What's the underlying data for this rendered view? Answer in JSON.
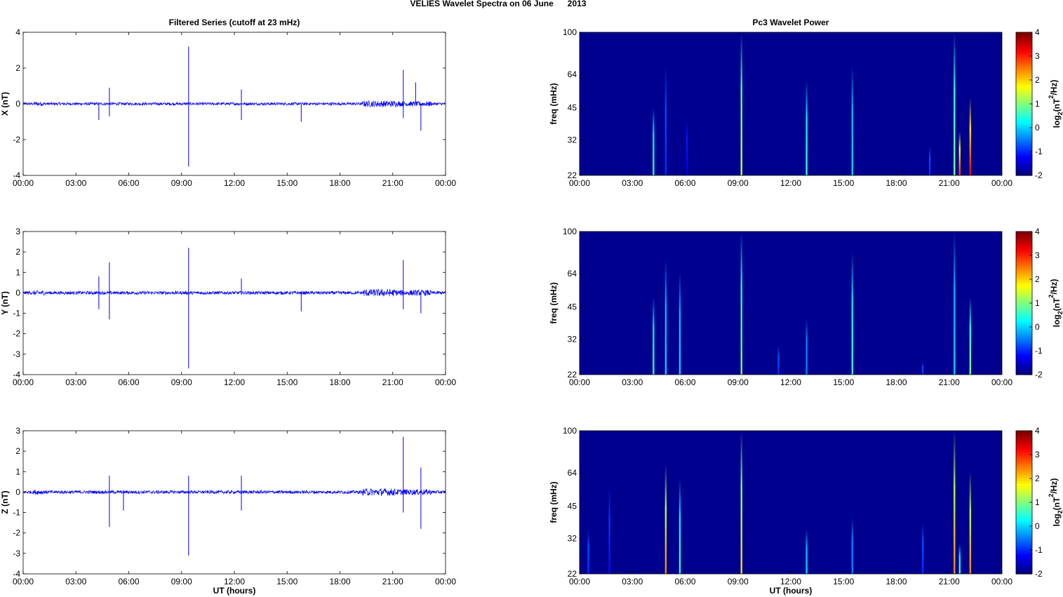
{
  "figure_title": "VELIES Wavelet Spectra on 06 June      2013",
  "left_title": "Filtered Series (cutoff at 23 mHz)",
  "right_title": "Pc3 Wavelet Power",
  "x_label": "UT (hours)",
  "freq_label": "freq (mHz)",
  "colorbar_label": "log2(nT2/Hz)",
  "colors": {
    "trace": "#0000ff",
    "spectrum_bg": "#00008f"
  },
  "chart_data": [
    {
      "type": "line",
      "title": "Filtered Series (cutoff at 23 mHz)",
      "ylabel": "X (nT)",
      "xlabel": "",
      "xlim": [
        "00:00",
        "00:00"
      ],
      "xticks": [
        "00:00",
        "03:00",
        "06:00",
        "09:00",
        "12:00",
        "15:00",
        "18:00",
        "21:00",
        "00:00"
      ],
      "ylim": [
        -4,
        4
      ],
      "yticks": [
        "4",
        "2",
        "0",
        "-2",
        "-4"
      ],
      "spikes": [
        {
          "x": 4.3,
          "y": -0.9
        },
        {
          "x": 4.9,
          "y": 0.9
        },
        {
          "x": 4.9,
          "y": -0.7
        },
        {
          "x": 9.4,
          "y": 3.2
        },
        {
          "x": 9.4,
          "y": -3.5
        },
        {
          "x": 12.4,
          "y": 0.8
        },
        {
          "x": 12.4,
          "y": -0.9
        },
        {
          "x": 15.8,
          "y": -1.0
        },
        {
          "x": 21.6,
          "y": 1.9
        },
        {
          "x": 21.6,
          "y": -0.8
        },
        {
          "x": 22.3,
          "y": 1.2
        },
        {
          "x": 22.6,
          "y": -1.5
        }
      ]
    },
    {
      "type": "line",
      "ylabel": "Y (nT)",
      "xlabel": "",
      "xlim": [
        "00:00",
        "00:00"
      ],
      "xticks": [
        "00:00",
        "03:00",
        "06:00",
        "09:00",
        "12:00",
        "15:00",
        "18:00",
        "21:00",
        "00:00"
      ],
      "ylim": [
        -4,
        3
      ],
      "yticks": [
        "3",
        "2",
        "1",
        "0",
        "-1",
        "-2",
        "-3",
        "-4"
      ],
      "spikes": [
        {
          "x": 4.3,
          "y": 0.8
        },
        {
          "x": 4.3,
          "y": -0.8
        },
        {
          "x": 4.9,
          "y": 1.5
        },
        {
          "x": 4.9,
          "y": -1.3
        },
        {
          "x": 9.4,
          "y": 2.2
        },
        {
          "x": 9.4,
          "y": -3.7
        },
        {
          "x": 12.4,
          "y": 0.7
        },
        {
          "x": 15.8,
          "y": -0.9
        },
        {
          "x": 21.6,
          "y": 1.6
        },
        {
          "x": 21.6,
          "y": -0.8
        },
        {
          "x": 22.6,
          "y": -1.0
        }
      ]
    },
    {
      "type": "line",
      "ylabel": "Z (nT)",
      "xlabel": "UT (hours)",
      "xlim": [
        "00:00",
        "00:00"
      ],
      "xticks": [
        "00:00",
        "03:00",
        "06:00",
        "09:00",
        "12:00",
        "15:00",
        "18:00",
        "21:00",
        "00:00"
      ],
      "ylim": [
        -4,
        3
      ],
      "yticks": [
        "3",
        "2",
        "1",
        "0",
        "-1",
        "-2",
        "-3",
        "-4"
      ],
      "spikes": [
        {
          "x": 4.9,
          "y": 0.8
        },
        {
          "x": 4.9,
          "y": -1.7
        },
        {
          "x": 5.7,
          "y": -0.9
        },
        {
          "x": 9.4,
          "y": 0.8
        },
        {
          "x": 9.4,
          "y": -3.1
        },
        {
          "x": 12.4,
          "y": 0.8
        },
        {
          "x": 12.4,
          "y": -0.9
        },
        {
          "x": 21.6,
          "y": 2.7
        },
        {
          "x": 21.6,
          "y": -1.0
        },
        {
          "x": 22.6,
          "y": 1.2
        },
        {
          "x": 22.6,
          "y": -1.8
        }
      ]
    },
    {
      "type": "heatmap",
      "title": "Pc3 Wavelet Power",
      "ylabel": "freq (mHz)",
      "xlabel": "",
      "xticks": [
        "00:00",
        "03:00",
        "06:00",
        "09:00",
        "12:00",
        "15:00",
        "18:00",
        "21:00",
        "00:00"
      ],
      "yticks": [
        "100",
        "64",
        "45",
        "32",
        "22"
      ],
      "colorbar": {
        "label": "log2(nT2/Hz)",
        "range": [
          -2,
          4
        ],
        "ticks": [
          "4",
          "3",
          "2",
          "1",
          "0",
          "-1",
          "-2"
        ]
      },
      "streaks": [
        {
          "x": 4.2,
          "top_freq": 45,
          "peak": 0.5
        },
        {
          "x": 4.9,
          "top_freq": 70,
          "peak": -1
        },
        {
          "x": 6.1,
          "top_freq": 40,
          "peak": -1.5
        },
        {
          "x": 9.2,
          "top_freq": 100,
          "peak": 1.5
        },
        {
          "x": 12.9,
          "top_freq": 60,
          "peak": 0.5
        },
        {
          "x": 15.5,
          "top_freq": 70,
          "peak": 0
        },
        {
          "x": 19.9,
          "top_freq": 30,
          "peak": -1
        },
        {
          "x": 21.3,
          "top_freq": 100,
          "peak": 1
        },
        {
          "x": 21.6,
          "top_freq": 35,
          "peak": 3
        },
        {
          "x": 22.2,
          "top_freq": 50,
          "peak": 3.5
        }
      ]
    },
    {
      "type": "heatmap",
      "ylabel": "freq (mHz)",
      "xlabel": "",
      "xticks": [
        "00:00",
        "03:00",
        "06:00",
        "09:00",
        "12:00",
        "15:00",
        "18:00",
        "21:00",
        "00:00"
      ],
      "yticks": [
        "100",
        "64",
        "45",
        "32",
        "22"
      ],
      "colorbar": {
        "label": "log2(nT2/Hz)",
        "range": [
          -2,
          4
        ],
        "ticks": [
          "4",
          "3",
          "2",
          "1",
          "0",
          "-1",
          "-2"
        ]
      },
      "streaks": [
        {
          "x": 4.2,
          "top_freq": 50,
          "peak": 0.5
        },
        {
          "x": 4.9,
          "top_freq": 75,
          "peak": 0
        },
        {
          "x": 5.7,
          "top_freq": 65,
          "peak": 0
        },
        {
          "x": 9.2,
          "top_freq": 100,
          "peak": 1
        },
        {
          "x": 11.3,
          "top_freq": 30,
          "peak": -1
        },
        {
          "x": 12.9,
          "top_freq": 40,
          "peak": -0.5
        },
        {
          "x": 15.5,
          "top_freq": 80,
          "peak": 0.5
        },
        {
          "x": 19.5,
          "top_freq": 25,
          "peak": -1
        },
        {
          "x": 21.3,
          "top_freq": 100,
          "peak": 0
        },
        {
          "x": 22.2,
          "top_freq": 50,
          "peak": 1
        }
      ]
    },
    {
      "type": "heatmap",
      "ylabel": "freq (mHz)",
      "xlabel": "UT (hours)",
      "xticks": [
        "00:00",
        "03:00",
        "06:00",
        "09:00",
        "12:00",
        "15:00",
        "18:00",
        "21:00",
        "00:00"
      ],
      "yticks": [
        "100",
        "64",
        "45",
        "32",
        "22"
      ],
      "colorbar": {
        "label": "log2(nT2/Hz)",
        "range": [
          -2,
          4
        ],
        "ticks": [
          "4",
          "3",
          "2",
          "1",
          "0",
          "-1",
          "-2"
        ]
      },
      "streaks": [
        {
          "x": 0.5,
          "top_freq": 35,
          "peak": -1
        },
        {
          "x": 1.7,
          "top_freq": 55,
          "peak": -1.2
        },
        {
          "x": 4.9,
          "top_freq": 70,
          "peak": 2.5
        },
        {
          "x": 5.7,
          "top_freq": 60,
          "peak": 0.5
        },
        {
          "x": 9.2,
          "top_freq": 100,
          "peak": 2
        },
        {
          "x": 12.9,
          "top_freq": 35,
          "peak": 0
        },
        {
          "x": 15.5,
          "top_freq": 40,
          "peak": -0.5
        },
        {
          "x": 19.5,
          "top_freq": 38,
          "peak": -1
        },
        {
          "x": 21.3,
          "top_freq": 100,
          "peak": 2.5
        },
        {
          "x": 21.6,
          "top_freq": 30,
          "peak": 0.5
        },
        {
          "x": 22.2,
          "top_freq": 65,
          "peak": 2.5
        }
      ]
    }
  ]
}
